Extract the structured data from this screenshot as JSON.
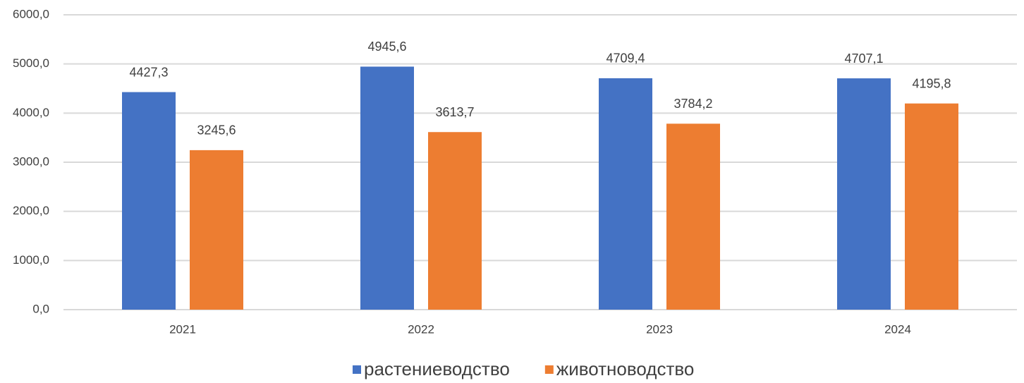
{
  "chart_data": {
    "type": "bar",
    "categories": [
      "2021",
      "2022",
      "2023",
      "2024"
    ],
    "series": [
      {
        "name": "растениеводство",
        "color": "#4472c4",
        "values": [
          4427.3,
          4945.6,
          4709.4,
          4707.1
        ],
        "value_labels": [
          "4427,3",
          "4945,6",
          "4709,4",
          "4707,1"
        ]
      },
      {
        "name": "животноводство",
        "color": "#ed7d31",
        "values": [
          3245.6,
          3613.7,
          3784.2,
          4195.8
        ],
        "value_labels": [
          "3245,6",
          "3613,7",
          "3784,2",
          "4195,8"
        ]
      }
    ],
    "ylim": [
      0,
      6000
    ],
    "yticks": [
      {
        "value": 0,
        "label": "0,0"
      },
      {
        "value": 1000,
        "label": "1000,0"
      },
      {
        "value": 2000,
        "label": "2000,0"
      },
      {
        "value": 3000,
        "label": "3000,0"
      },
      {
        "value": 4000,
        "label": "4000,0"
      },
      {
        "value": 5000,
        "label": "5000,0"
      },
      {
        "value": 6000,
        "label": "6000,0"
      }
    ],
    "grid": true,
    "legend": "bottom"
  }
}
